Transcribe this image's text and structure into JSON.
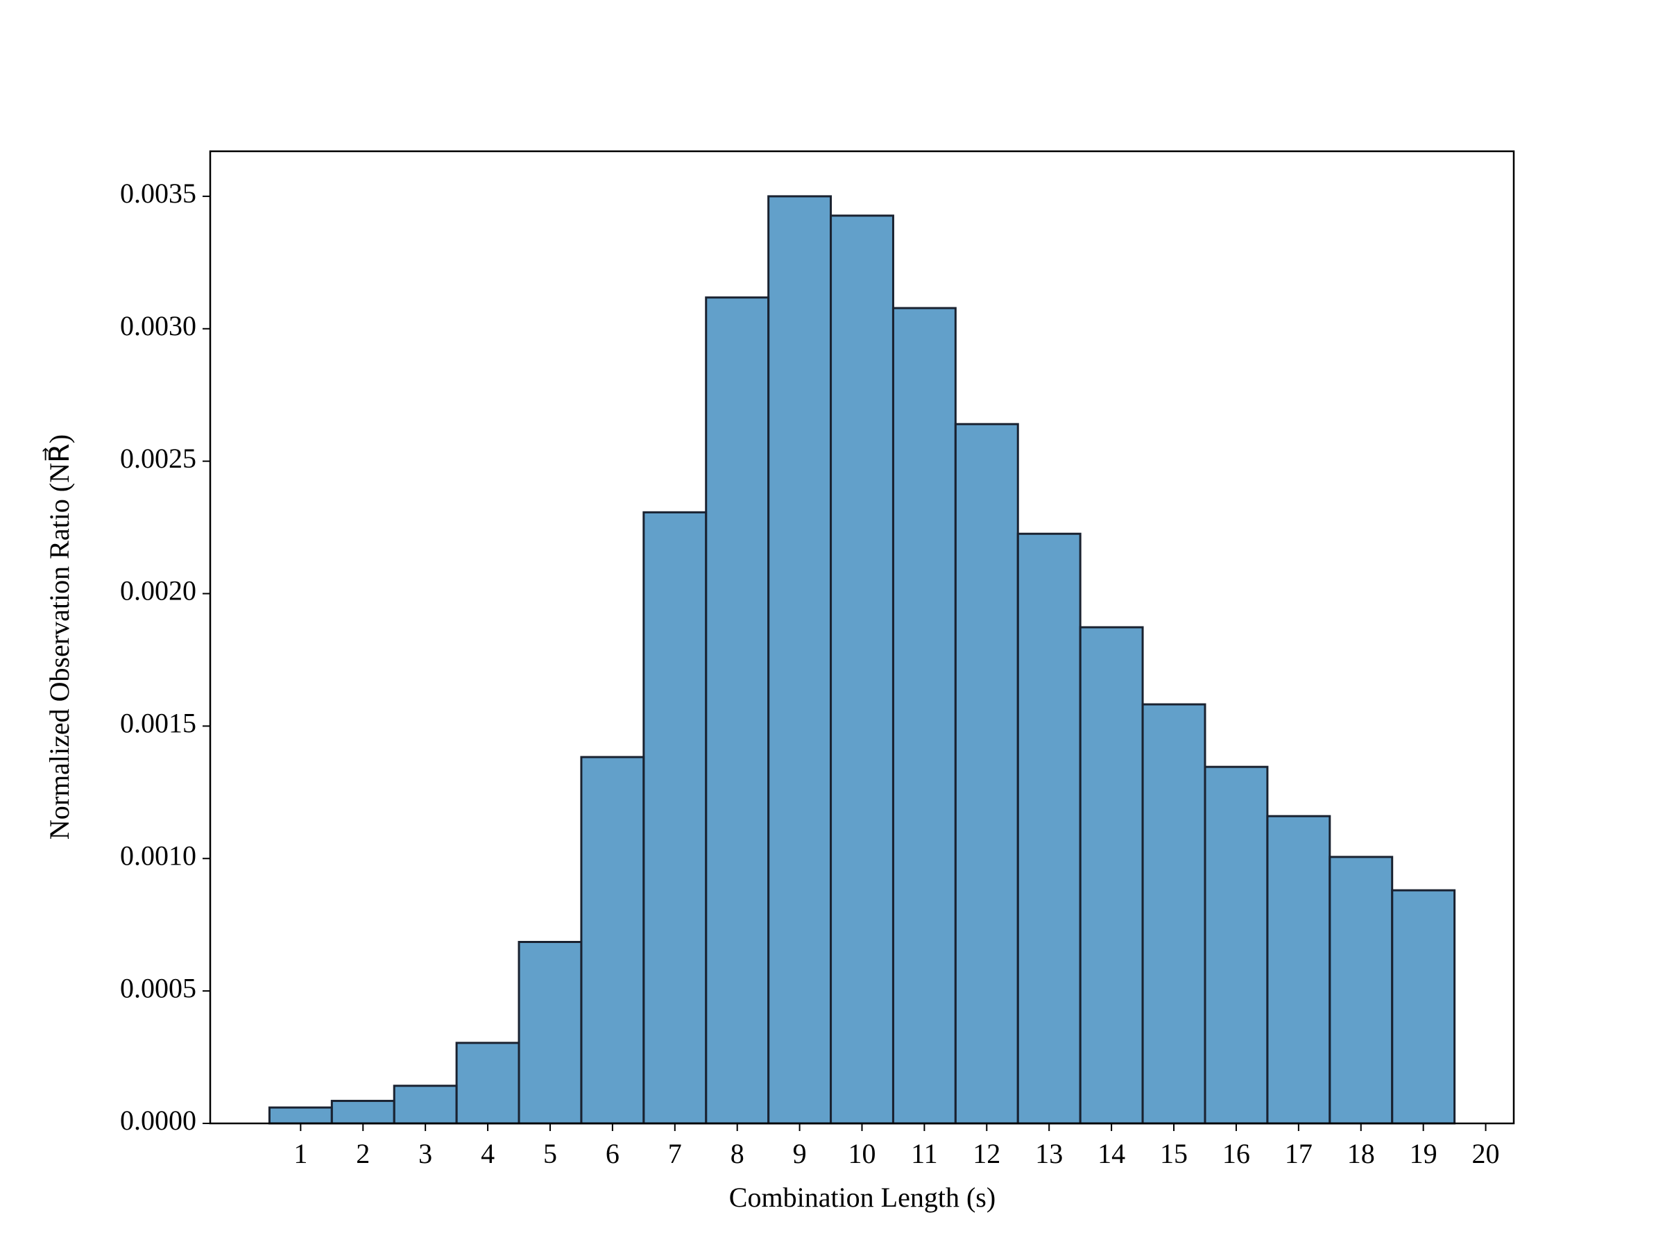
{
  "chart_data": {
    "type": "histogram",
    "xlabel": "Combination Length (s)",
    "ylabel": "Normalized Observation Ratio (NR⃗)",
    "bins": [
      0.5,
      1.5,
      2.5,
      3.5,
      4.5,
      5.5,
      6.5,
      7.5,
      8.5,
      9.5,
      10.5,
      11.5,
      12.5,
      13.5,
      14.5,
      15.5,
      16.5,
      17.5,
      18.5,
      19.5
    ],
    "values": [
      6e-05,
      8.5e-05,
      0.000142,
      0.000304,
      0.000685,
      0.001383,
      0.002307,
      0.003118,
      0.0035,
      0.003427,
      0.003078,
      0.00264,
      0.002226,
      0.001873,
      0.001582,
      0.001346,
      0.00116,
      0.001006,
      0.00088
    ],
    "color": "#1f77b4",
    "alpha": 0.7,
    "edgecolor": "#1a2230",
    "xlim": [
      -0.45,
      20.45
    ],
    "xticks": [
      1,
      2,
      3,
      4,
      5,
      6,
      7,
      8,
      9,
      10,
      11,
      12,
      13,
      14,
      15,
      16,
      17,
      18,
      19,
      20
    ],
    "ylim": [
      0,
      0.00367
    ],
    "yticks": [
      {
        "value": 0,
        "label": "0.0000"
      },
      {
        "value": 0.0005,
        "label": "0.0005"
      },
      {
        "value": 0.001,
        "label": "0.0010"
      },
      {
        "value": 0.0015,
        "label": "0.0015"
      },
      {
        "value": 0.002,
        "label": "0.0020"
      },
      {
        "value": 0.0025,
        "label": "0.0025"
      },
      {
        "value": 0.003,
        "label": "0.0030"
      },
      {
        "value": 0.0035,
        "label": "0.0035"
      }
    ],
    "grid": false
  }
}
